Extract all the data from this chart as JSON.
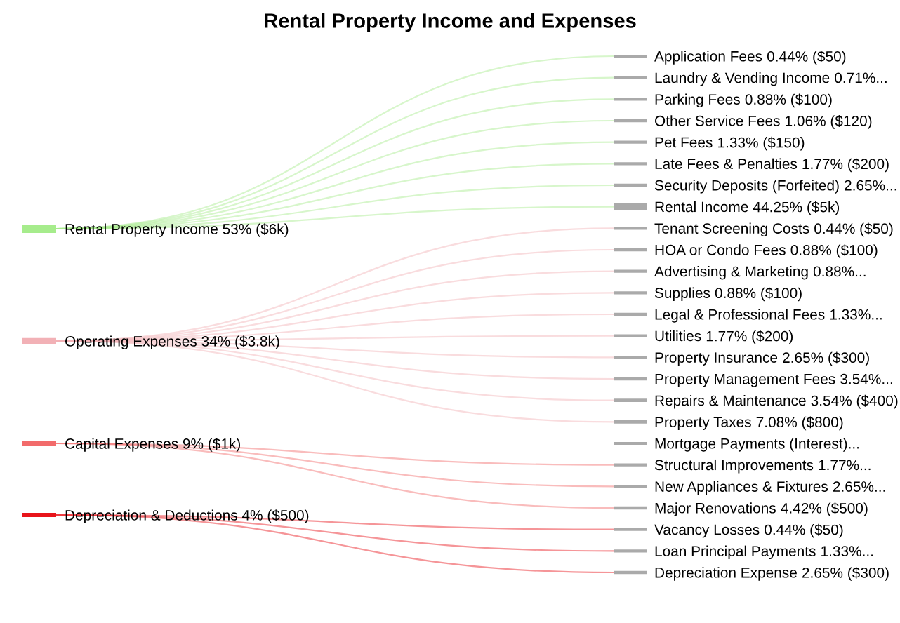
{
  "chart_data": {
    "type": "other",
    "title": "Rental Property Income and Expenses",
    "legend": "left",
    "categories": [
      "Application Fees",
      "Laundry & Vending Income",
      "Parking Fees",
      "Other Service Fees",
      "Pet Fees",
      "Late Fees & Penalties",
      "Security Deposits (Forfeited)",
      "Rental Income",
      "Tenant Screening Costs",
      "HOA or Condo Fees",
      "Advertising & Marketing",
      "Supplies",
      "Legal & Professional Fees",
      "Utilities",
      "Property Insurance",
      "Property Management Fees",
      "Repairs & Maintenance",
      "Property Taxes",
      "Mortgage Payments (Interest)...",
      "Structural Improvements",
      "New Appliances & Fixtures",
      "Major Renovations",
      "Vacancy Losses",
      "Loan Principal Payments",
      "Depreciation Expense"
    ],
    "series": [
      {
        "name": "Rental Property Income 53% ($6k)",
        "color": "#a6ec8c",
        "values": [
          0.44,
          0.71,
          0.88,
          1.06,
          1.33,
          1.77,
          2.65,
          44.25,
          null,
          null,
          null,
          null,
          null,
          null,
          null,
          null,
          null,
          null,
          null,
          null,
          null,
          null,
          null,
          null,
          null
        ],
        "value_labels": [
          "0.44% ($50)",
          "0.71%...",
          "0.88% ($100)",
          "1.06% ($120)",
          "1.33% ($150)",
          "1.77% ($200)",
          "2.65%...",
          "44.25% ($5k)",
          null,
          null,
          null,
          null,
          null,
          null,
          null,
          null,
          null,
          null,
          null,
          null,
          null,
          null,
          null,
          null,
          null
        ]
      },
      {
        "name": "Operating Expenses 34% ($3.8k)",
        "color": "#f2b1b6",
        "values": [
          null,
          null,
          null,
          null,
          null,
          null,
          null,
          null,
          0.44,
          0.88,
          0.88,
          0.88,
          1.33,
          1.77,
          2.65,
          3.54,
          3.54,
          7.08,
          null,
          null,
          null,
          null,
          null,
          null,
          null
        ],
        "value_labels": [
          null,
          null,
          null,
          null,
          null,
          null,
          null,
          null,
          "0.44% ($50)",
          "0.88% ($100)",
          "0.88%...",
          "0.88% ($100)",
          "1.33%...",
          "1.77% ($200)",
          "2.65% ($300)",
          "3.54%...",
          "3.54% ($400)",
          "7.08% ($800)",
          null,
          null,
          null,
          null,
          null,
          null,
          null
        ]
      },
      {
        "name": "Capital Expenses 9% ($1k)",
        "color": "#f26b6b",
        "values": [
          null,
          null,
          null,
          null,
          null,
          null,
          null,
          null,
          null,
          null,
          null,
          null,
          null,
          null,
          null,
          null,
          null,
          null,
          null,
          1.77,
          2.65,
          4.42,
          null,
          null,
          null
        ],
        "value_labels": [
          null,
          null,
          null,
          null,
          null,
          null,
          null,
          null,
          null,
          null,
          null,
          null,
          null,
          null,
          null,
          null,
          null,
          null,
          null,
          "1.77%...",
          "2.65%...",
          "4.42% ($500)",
          null,
          null,
          null
        ]
      },
      {
        "name": "Depreciation & Deductions 4% ($500)",
        "color": "#e8141a",
        "values": [
          null,
          null,
          null,
          null,
          null,
          null,
          null,
          null,
          null,
          null,
          null,
          null,
          null,
          null,
          null,
          null,
          null,
          null,
          null,
          null,
          null,
          null,
          0.44,
          1.33,
          2.65
        ],
        "value_labels": [
          null,
          null,
          null,
          null,
          null,
          null,
          null,
          null,
          null,
          null,
          null,
          null,
          null,
          null,
          null,
          null,
          null,
          null,
          null,
          null,
          null,
          null,
          "0.44% ($50)",
          "1.33%...",
          "2.65% ($300)"
        ]
      }
    ]
  }
}
